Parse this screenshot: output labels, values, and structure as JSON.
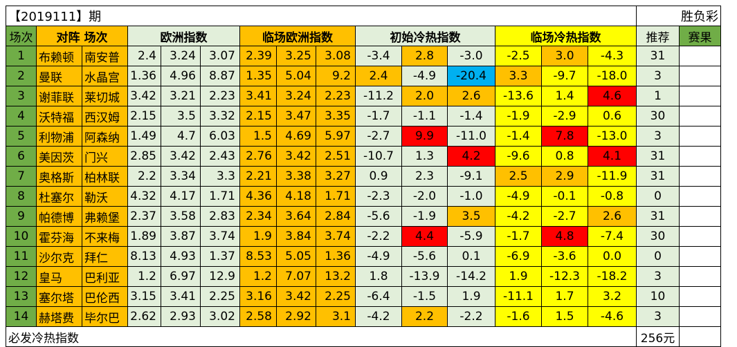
{
  "title": "【2019111】期",
  "subtitle": "胜负彩",
  "headers": {
    "changci": "场次",
    "duizhen": "对阵",
    "changci2": "场次",
    "ouzhou": "欧洲指数",
    "linchang_ouzhou": "临场欧洲指数",
    "chushi": "初始冷热指数",
    "linchang_lengre": "临场冷热指数",
    "tuijian": "推荐",
    "saiguo": "赛果"
  },
  "rows": [
    {
      "n": "1",
      "home": "布赖顿",
      "away": "南安普",
      "eu": [
        "2.4",
        "3.24",
        "3.07"
      ],
      "leu": [
        "2.39",
        "3.25",
        "3.08"
      ],
      "init": [
        "-3.4",
        "2.8",
        "-3.0"
      ],
      "init_c": [
        "g",
        "or",
        "g"
      ],
      "live": [
        "-2.5",
        "3.0",
        "-4.3"
      ],
      "live_c": [
        "ye",
        "or",
        "ye"
      ],
      "rec": "31",
      "res": ""
    },
    {
      "n": "2",
      "home": "曼联",
      "away": "水晶宫",
      "eu": [
        "1.36",
        "4.96",
        "8.87"
      ],
      "leu": [
        "1.35",
        "5.04",
        "9.2"
      ],
      "init": [
        "2.4",
        "-4.9",
        "-20.4"
      ],
      "init_c": [
        "or",
        "g",
        "blue"
      ],
      "live": [
        "3.3",
        "-9.7",
        "-18.0"
      ],
      "live_c": [
        "or",
        "ye",
        "ye"
      ],
      "rec": "3",
      "res": ""
    },
    {
      "n": "3",
      "home": "谢菲联",
      "away": "莱切城",
      "eu": [
        "3.42",
        "3.21",
        "2.23"
      ],
      "leu": [
        "3.41",
        "3.24",
        "2.23"
      ],
      "init": [
        "-11.2",
        "2.0",
        "2.6"
      ],
      "init_c": [
        "g",
        "or",
        "or"
      ],
      "live": [
        "-13.6",
        "1.4",
        "4.6"
      ],
      "live_c": [
        "ye",
        "ye",
        "red"
      ],
      "rec": "1",
      "res": ""
    },
    {
      "n": "4",
      "home": "沃特福",
      "away": "西汉姆",
      "eu": [
        "2.15",
        "3.5",
        "3.32"
      ],
      "leu": [
        "2.15",
        "3.47",
        "3.35"
      ],
      "init": [
        "-1.7",
        "-1.1",
        "-1.4"
      ],
      "init_c": [
        "g",
        "g",
        "g"
      ],
      "live": [
        "-1.9",
        "-2.9",
        "0.6"
      ],
      "live_c": [
        "ye",
        "ye",
        "ye"
      ],
      "rec": "30",
      "res": ""
    },
    {
      "n": "5",
      "home": "利物浦",
      "away": "阿森纳",
      "eu": [
        "1.49",
        "4.7",
        "6.03"
      ],
      "leu": [
        "1.5",
        "4.69",
        "5.97"
      ],
      "init": [
        "-2.7",
        "9.9",
        "-11.0"
      ],
      "init_c": [
        "g",
        "red",
        "g"
      ],
      "live": [
        "-1.4",
        "7.8",
        "-13.0"
      ],
      "live_c": [
        "ye",
        "red",
        "ye"
      ],
      "rec": "3",
      "res": ""
    },
    {
      "n": "6",
      "home": "美因茨",
      "away": "门兴",
      "eu": [
        "2.85",
        "3.42",
        "2.43"
      ],
      "leu": [
        "2.76",
        "3.42",
        "2.51"
      ],
      "init": [
        "-10.7",
        "1.3",
        "4.2"
      ],
      "init_c": [
        "g",
        "g",
        "red"
      ],
      "live": [
        "-9.6",
        "0.8",
        "4.1"
      ],
      "live_c": [
        "ye",
        "ye",
        "red"
      ],
      "rec": "31",
      "res": ""
    },
    {
      "n": "7",
      "home": "奥格斯",
      "away": "柏林联",
      "eu": [
        "2.2",
        "3.34",
        "3.3"
      ],
      "leu": [
        "2.21",
        "3.38",
        "3.27"
      ],
      "init": [
        "0.9",
        "2.3",
        "-9.1"
      ],
      "init_c": [
        "g",
        "g",
        "g"
      ],
      "live": [
        "2.5",
        "2.9",
        "-11.9"
      ],
      "live_c": [
        "or",
        "or",
        "ye"
      ],
      "rec": "31",
      "res": ""
    },
    {
      "n": "8",
      "home": "杜塞尔",
      "away": "勒沃",
      "eu": [
        "4.32",
        "4.17",
        "1.71"
      ],
      "leu": [
        "4.36",
        "4.18",
        "1.71"
      ],
      "init": [
        "-2.3",
        "-2.0",
        "-1.0"
      ],
      "init_c": [
        "g",
        "g",
        "g"
      ],
      "live": [
        "-4.9",
        "-0.1",
        "-0.8"
      ],
      "live_c": [
        "ye",
        "ye",
        "ye"
      ],
      "rec": "0",
      "res": ""
    },
    {
      "n": "9",
      "home": "帕德博",
      "away": "弗赖堡",
      "eu": [
        "2.37",
        "3.58",
        "2.83"
      ],
      "leu": [
        "2.34",
        "3.64",
        "2.84"
      ],
      "init": [
        "-5.6",
        "-1.9",
        "3.5"
      ],
      "init_c": [
        "g",
        "g",
        "or"
      ],
      "live": [
        "-4.2",
        "-2.7",
        "2.6"
      ],
      "live_c": [
        "ye",
        "ye",
        "or"
      ],
      "rec": "31",
      "res": ""
    },
    {
      "n": "10",
      "home": "霍芬海",
      "away": "不来梅",
      "eu": [
        "1.89",
        "3.87",
        "3.74"
      ],
      "leu": [
        "1.9",
        "3.84",
        "3.74"
      ],
      "init": [
        "-2.2",
        "4.4",
        "-5.9"
      ],
      "init_c": [
        "g",
        "red",
        "g"
      ],
      "live": [
        "-1.7",
        "4.8",
        "-7.4"
      ],
      "live_c": [
        "ye",
        "red",
        "ye"
      ],
      "rec": "30",
      "res": ""
    },
    {
      "n": "11",
      "home": "沙尔克",
      "away": "拜仁",
      "eu": [
        "8.13",
        "4.93",
        "1.37"
      ],
      "leu": [
        "8.53",
        "5.05",
        "1.36"
      ],
      "init": [
        "-4.9",
        "-5.6",
        "0.1"
      ],
      "init_c": [
        "g",
        "g",
        "g"
      ],
      "live": [
        "-6.9",
        "-3.6",
        "0.0"
      ],
      "live_c": [
        "ye",
        "ye",
        "ye"
      ],
      "rec": "0",
      "res": ""
    },
    {
      "n": "12",
      "home": "皇马",
      "away": "巴利亚",
      "eu": [
        "1.2",
        "6.97",
        "12.9"
      ],
      "leu": [
        "1.2",
        "7.07",
        "13.2"
      ],
      "init": [
        "1.8",
        "-13.9",
        "-14.2"
      ],
      "init_c": [
        "g",
        "g",
        "g"
      ],
      "live": [
        "1.9",
        "-12.3",
        "-18.2"
      ],
      "live_c": [
        "ye",
        "ye",
        "ye"
      ],
      "rec": "3",
      "res": ""
    },
    {
      "n": "13",
      "home": "塞尔塔",
      "away": "巴伦西",
      "eu": [
        "3.15",
        "3.41",
        "2.25"
      ],
      "leu": [
        "3.16",
        "3.42",
        "2.25"
      ],
      "init": [
        "-6.4",
        "-1.5",
        "1.9"
      ],
      "init_c": [
        "g",
        "g",
        "g"
      ],
      "live": [
        "-11.1",
        "1.7",
        "3.2"
      ],
      "live_c": [
        "ye",
        "ye",
        "ye"
      ],
      "rec": "10",
      "res": ""
    },
    {
      "n": "14",
      "home": "赫塔费",
      "away": "毕尔巴",
      "eu": [
        "2.62",
        "2.93",
        "3.02"
      ],
      "leu": [
        "2.58",
        "2.92",
        "3.1"
      ],
      "init": [
        "-4.2",
        "2.2",
        "-2.2"
      ],
      "init_c": [
        "g",
        "or",
        "g"
      ],
      "live": [
        "-1.6",
        "1.5",
        "-4.6"
      ],
      "live_c": [
        "ye",
        "ye",
        "ye"
      ],
      "rec": "3",
      "res": ""
    }
  ],
  "footer": {
    "label": "必发冷热指数",
    "amount": "256元"
  }
}
